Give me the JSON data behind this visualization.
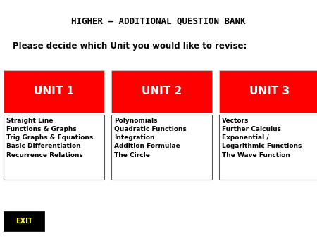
{
  "title": "HIGHER – ADDITIONAL QUESTION BANK",
  "subtitle": "Please decide which Unit you would like to revise:",
  "background_color": "#ffffff",
  "title_fontsize": 9,
  "subtitle_fontsize": 8.5,
  "units": [
    "UNIT 1",
    "UNIT 2",
    "UNIT 3"
  ],
  "unit_color": "#ff0000",
  "unit_text_color": "#ffffff",
  "unit_fontsize": 11,
  "unit1_topics": [
    "Straight Line",
    "Functions & Graphs",
    "Trig Graphs & Equations",
    "Basic Differentiation",
    "Recurrence Relations"
  ],
  "unit2_topics": [
    "Polynomials",
    "Quadratic Functions",
    "Integration",
    "Addition Formulae",
    "The Circle"
  ],
  "unit3_topics": [
    "Vectors",
    "Further Calculus",
    "Exponential /",
    "Logarithmic Functions",
    "The Wave Function"
  ],
  "topic_fontsize": 6.5,
  "exit_label": "EXIT",
  "exit_bg": "#000000",
  "exit_text_color": "#ffff00",
  "exit_fontsize": 7
}
